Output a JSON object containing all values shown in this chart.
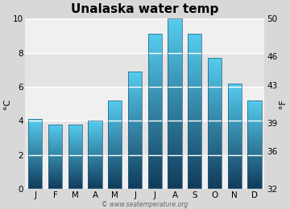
{
  "title": "Unalaska water temp",
  "months": [
    "J",
    "F",
    "M",
    "A",
    "M",
    "J",
    "J",
    "A",
    "S",
    "O",
    "N",
    "D"
  ],
  "values_c": [
    4.1,
    3.8,
    3.8,
    4.0,
    5.2,
    6.9,
    9.1,
    10.0,
    9.1,
    7.7,
    6.2,
    5.2
  ],
  "ylim_c": [
    0,
    10
  ],
  "ylim_f": [
    32,
    50
  ],
  "yticks_c": [
    0,
    2,
    4,
    6,
    8,
    10
  ],
  "yticks_f": [
    32,
    36,
    39,
    43,
    46,
    50
  ],
  "ylabel_left": "°C",
  "ylabel_right": "°F",
  "bar_color_bottom": "#1a5c80",
  "bar_color_mid": "#1a7aaa",
  "bar_color_top": "#45c8e8",
  "bg_color": "#d8d8d8",
  "plot_bg_color_light": "#f0f0f0",
  "plot_bg_color_dark": "#e0e0e0",
  "watermark": "© www.seatemperature.org",
  "title_fontsize": 11,
  "tick_fontsize": 7.5,
  "label_fontsize": 8,
  "bar_width": 0.7
}
